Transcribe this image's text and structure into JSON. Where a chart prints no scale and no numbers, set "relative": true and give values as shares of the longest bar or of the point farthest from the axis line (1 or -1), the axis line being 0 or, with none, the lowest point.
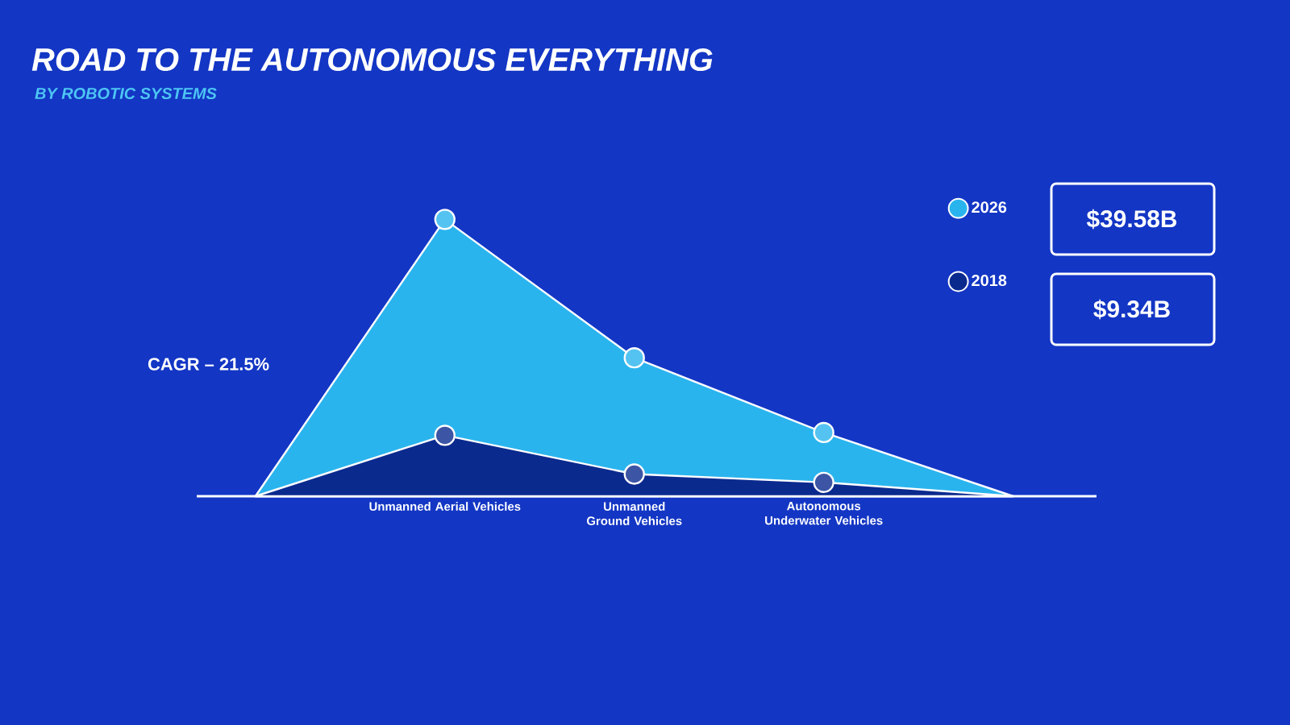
{
  "chart_data": {
    "type": "area",
    "title": "ROAD TO THE AUTONOMOUS EVERYTHING",
    "subtitle": "BY ROBOTIC SYSTEMS",
    "categories": [
      null,
      "Unmanned Aerial Vehicles",
      "Unmanned Ground Vehicles",
      "Autonomous Underwater Vehicles",
      null
    ],
    "relative": true,
    "series": [
      {
        "name": "2026",
        "color": "#2ab4ee",
        "values": [
          0,
          1,
          0.5,
          0.23,
          0
        ]
      },
      {
        "name": "2018",
        "color": "#0b2a8e",
        "values": [
          0,
          0.22,
          0.08,
          0.05,
          0
        ]
      }
    ],
    "marker": "circle",
    "legend": "top right",
    "annotations": [
      "CAGR – 21.5%",
      "$39.58B",
      "$9.34B"
    ]
  }
}
